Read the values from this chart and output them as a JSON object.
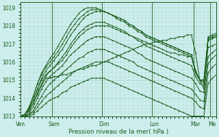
{
  "bg_color": "#cdeeed",
  "grid_color": "#b0d8cc",
  "line_color": "#1a5c1a",
  "xlabel": "Pression niveau de la mer( hPa )",
  "day_labels": [
    "Ven",
    "Sam",
    "Dim",
    "Lun",
    "Mar",
    "Me"
  ],
  "yticks": [
    1013,
    1014,
    1015,
    1016,
    1017,
    1018,
    1019
  ],
  "ylim": [
    1013,
    1019.3
  ],
  "lines": [
    [
      1013.0,
      1013.1,
      1013.3,
      1013.7,
      1014.2,
      1014.7,
      1015.1,
      1015.1,
      1015.2,
      1015.2,
      1015.3,
      1015.3,
      1015.4,
      1015.5,
      1015.6,
      1015.6,
      1015.7,
      1015.8,
      1015.8,
      1015.9,
      1016.0,
      1016.1,
      1016.2,
      1016.3,
      1016.4,
      1016.5,
      1016.6,
      1016.7,
      1016.8,
      1016.9,
      1017.0,
      1017.0,
      1017.1,
      1017.1,
      1017.2,
      1017.2,
      1017.3,
      1017.3,
      1017.4,
      1017.4,
      1017.5,
      1017.5,
      1016.5,
      1015.0,
      1014.5,
      1017.4,
      1017.5,
      1017.6
    ],
    [
      1013.0,
      1013.1,
      1013.4,
      1013.9,
      1014.5,
      1015.0,
      1015.3,
      1015.5,
      1015.7,
      1015.9,
      1016.1,
      1016.4,
      1016.8,
      1017.1,
      1017.4,
      1017.6,
      1017.8,
      1017.9,
      1018.0,
      1018.0,
      1018.0,
      1018.0,
      1017.9,
      1017.8,
      1017.7,
      1017.6,
      1017.5,
      1017.4,
      1017.3,
      1017.2,
      1017.1,
      1017.0,
      1016.9,
      1016.8,
      1016.7,
      1016.6,
      1016.5,
      1016.5,
      1016.4,
      1016.4,
      1016.3,
      1016.3,
      1015.5,
      1015.0,
      1014.8,
      1017.2,
      1017.3,
      1017.4
    ],
    [
      1013.0,
      1013.1,
      1013.5,
      1014.1,
      1014.8,
      1015.3,
      1015.7,
      1016.0,
      1016.3,
      1016.6,
      1017.0,
      1017.4,
      1017.8,
      1018.1,
      1018.4,
      1018.6,
      1018.8,
      1018.9,
      1018.9,
      1018.9,
      1018.8,
      1018.7,
      1018.6,
      1018.5,
      1018.4,
      1018.3,
      1018.1,
      1018.0,
      1017.8,
      1017.7,
      1017.5,
      1017.4,
      1017.3,
      1017.2,
      1017.1,
      1017.0,
      1016.9,
      1016.8,
      1016.7,
      1016.6,
      1016.5,
      1016.4,
      1015.5,
      1015.0,
      1015.0,
      1017.3,
      1017.4,
      1017.5
    ],
    [
      1013.0,
      1013.1,
      1013.5,
      1014.1,
      1014.8,
      1015.4,
      1015.8,
      1016.2,
      1016.5,
      1016.9,
      1017.3,
      1017.7,
      1018.1,
      1018.4,
      1018.7,
      1018.9,
      1019.0,
      1019.0,
      1019.0,
      1018.9,
      1018.8,
      1018.7,
      1018.6,
      1018.4,
      1018.3,
      1018.2,
      1018.0,
      1017.9,
      1017.7,
      1017.6,
      1017.4,
      1017.3,
      1017.2,
      1017.1,
      1017.0,
      1016.9,
      1016.8,
      1016.7,
      1016.6,
      1016.5,
      1016.4,
      1016.3,
      1015.4,
      1015.0,
      1015.0,
      1017.3,
      1017.4,
      1017.5
    ],
    [
      1013.0,
      1013.1,
      1013.4,
      1013.9,
      1014.5,
      1015.1,
      1015.5,
      1015.8,
      1016.1,
      1016.4,
      1016.7,
      1017.1,
      1017.5,
      1017.8,
      1018.1,
      1018.4,
      1018.6,
      1018.7,
      1018.8,
      1018.8,
      1018.8,
      1018.7,
      1018.6,
      1018.5,
      1018.4,
      1018.3,
      1018.1,
      1018.0,
      1017.8,
      1017.7,
      1017.5,
      1017.4,
      1017.3,
      1017.2,
      1017.1,
      1017.0,
      1016.9,
      1016.8,
      1016.7,
      1016.6,
      1016.5,
      1016.4,
      1015.4,
      1015.0,
      1014.9,
      1017.2,
      1017.3,
      1017.4
    ],
    [
      1013.0,
      1013.1,
      1013.3,
      1013.7,
      1014.3,
      1014.8,
      1015.2,
      1015.5,
      1015.7,
      1016.0,
      1016.3,
      1016.6,
      1017.0,
      1017.3,
      1017.6,
      1017.8,
      1018.0,
      1018.1,
      1018.2,
      1018.2,
      1018.2,
      1018.1,
      1018.0,
      1017.9,
      1017.8,
      1017.7,
      1017.5,
      1017.4,
      1017.2,
      1017.1,
      1016.9,
      1016.8,
      1016.7,
      1016.6,
      1016.5,
      1016.4,
      1016.3,
      1016.2,
      1016.1,
      1016.0,
      1015.9,
      1015.8,
      1015.2,
      1014.8,
      1014.7,
      1016.8,
      1016.9,
      1017.0
    ],
    [
      1013.0,
      1013.0,
      1013.2,
      1013.5,
      1014.0,
      1014.5,
      1014.9,
      1015.2,
      1015.4,
      1015.6,
      1015.8,
      1016.1,
      1016.4,
      1016.6,
      1016.8,
      1017.0,
      1017.2,
      1017.3,
      1017.4,
      1017.4,
      1017.4,
      1017.3,
      1017.2,
      1017.1,
      1017.0,
      1016.9,
      1016.8,
      1016.7,
      1016.5,
      1016.4,
      1016.2,
      1016.1,
      1016.0,
      1015.9,
      1015.8,
      1015.7,
      1015.6,
      1015.5,
      1015.4,
      1015.3,
      1015.2,
      1015.1,
      1014.8,
      1014.4,
      1014.3,
      1016.3,
      1016.5,
      1016.7
    ],
    [
      1013.0,
      1013.0,
      1013.1,
      1013.3,
      1013.7,
      1014.1,
      1014.5,
      1014.8,
      1015.0,
      1015.2,
      1015.4,
      1015.6,
      1015.8,
      1016.0,
      1016.2,
      1016.3,
      1016.5,
      1016.6,
      1016.7,
      1016.7,
      1016.7,
      1016.6,
      1016.5,
      1016.4,
      1016.3,
      1016.2,
      1016.1,
      1016.0,
      1015.8,
      1015.7,
      1015.6,
      1015.5,
      1015.4,
      1015.3,
      1015.2,
      1015.1,
      1015.0,
      1014.9,
      1014.8,
      1014.7,
      1014.6,
      1014.5,
      1014.2,
      1013.9,
      1013.8,
      1015.9,
      1016.2,
      1016.4
    ],
    [
      1013.0,
      1013.0,
      1013.1,
      1013.2,
      1013.5,
      1013.8,
      1014.1,
      1014.3,
      1014.5,
      1014.7,
      1014.9,
      1015.1,
      1015.3,
      1015.5,
      1015.6,
      1015.7,
      1015.8,
      1015.9,
      1016.0,
      1016.0,
      1016.0,
      1016.0,
      1015.9,
      1015.8,
      1015.7,
      1015.6,
      1015.5,
      1015.4,
      1015.3,
      1015.2,
      1015.1,
      1015.0,
      1014.9,
      1014.8,
      1014.7,
      1014.6,
      1014.5,
      1014.4,
      1014.3,
      1014.2,
      1014.1,
      1014.0,
      1013.8,
      1013.5,
      1013.4,
      1015.4,
      1015.7,
      1015.9
    ],
    [
      1013.0,
      1013.0,
      1013.0,
      1013.1,
      1013.3,
      1013.5,
      1013.7,
      1013.9,
      1014.0,
      1014.1,
      1014.3,
      1014.4,
      1014.6,
      1014.7,
      1014.8,
      1014.9,
      1015.0,
      1015.1,
      1015.1,
      1015.1,
      1015.1,
      1015.0,
      1014.9,
      1014.8,
      1014.7,
      1014.6,
      1014.5,
      1014.4,
      1014.3,
      1014.2,
      1014.1,
      1014.0,
      1013.9,
      1013.8,
      1013.7,
      1013.6,
      1013.5,
      1013.4,
      1013.3,
      1013.2,
      1013.1,
      1013.0,
      1013.0,
      1013.0,
      1013.0,
      1014.8,
      1015.1,
      1015.3
    ]
  ]
}
